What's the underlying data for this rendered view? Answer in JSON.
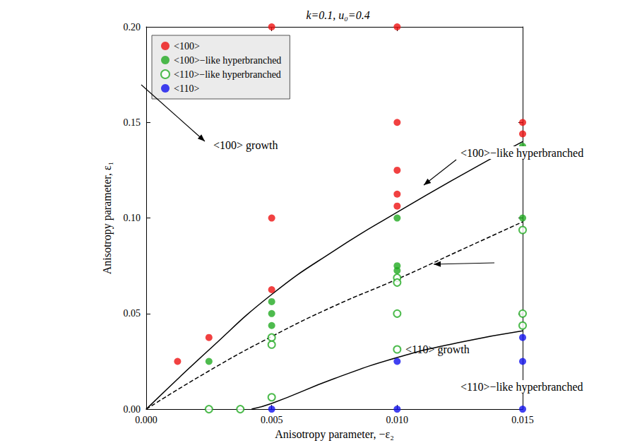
{
  "chart_data": {
    "type": "scatter",
    "title": "k=0.1, u₀=0.4",
    "x_label": "Anisotropy parameter, −ε₂",
    "y_label": "Anisotropy parameter, ε₁",
    "xlim": [
      0,
      0.015
    ],
    "xticks": [
      {
        "value": 0,
        "label": "0.000"
      },
      {
        "value": 0.005,
        "label": "0.005"
      },
      {
        "value": 0.01,
        "label": "0.010"
      },
      {
        "value": 0.015,
        "label": "0.015"
      }
    ],
    "ylim": [
      0,
      0.2
    ],
    "yticks": [
      {
        "value": 0,
        "label": "0.00"
      },
      0.05,
      {
        "value": 0.1,
        "label": "0.10"
      },
      0.15,
      {
        "value": 0.2,
        "label": "0.20"
      }
    ],
    "grid": false,
    "legend": "top-left",
    "series": [
      {
        "name": "<100>",
        "type": "scatter",
        "marker": "circle",
        "color": "#ee1111",
        "values": [
          [
            0.00125,
            0.025
          ],
          [
            0.0025,
            0.0375
          ],
          [
            0.005,
            0.0625
          ],
          [
            0.005,
            0.1
          ],
          [
            0.005,
            0.2
          ],
          [
            0.01,
            0.2
          ],
          [
            0.01,
            0.15
          ],
          [
            0.01,
            0.125
          ],
          [
            0.01,
            0.1125
          ],
          [
            0.01,
            0.10625
          ],
          [
            0.015,
            0.15
          ],
          [
            0.015,
            0.144
          ]
        ]
      },
      {
        "name": "<100>−like hyperbranched",
        "type": "scatter",
        "marker": "circle",
        "color": "#22aa22",
        "values": [
          [
            0.0025,
            0.025
          ],
          [
            0.005,
            0.05625
          ],
          [
            0.005,
            0.05
          ],
          [
            0.005,
            0.04375
          ],
          [
            0.01,
            0.1
          ],
          [
            0.01,
            0.075
          ],
          [
            0.01,
            0.0725
          ],
          [
            0.015,
            0.1375
          ],
          [
            0.015,
            0.1
          ]
        ]
      },
      {
        "name": "<110>−like hyperbranched",
        "type": "scatter",
        "marker": "open_circle",
        "color": "#22aa22",
        "values": [
          [
            0.0025,
            0
          ],
          [
            0.00375,
            0
          ],
          [
            0.005,
            0.0375
          ],
          [
            0.005,
            0.03375
          ],
          [
            0.005,
            0.00625
          ],
          [
            0.01,
            0.06875
          ],
          [
            0.01,
            0.06625
          ],
          [
            0.01,
            0.05
          ],
          [
            0.01,
            0.03125
          ],
          [
            0.015,
            0.09375
          ],
          [
            0.015,
            0.05
          ],
          [
            0.015,
            0.04375
          ]
        ]
      },
      {
        "name": "<110>",
        "type": "scatter",
        "marker": "circle",
        "color": "#1111ee",
        "values": [
          [
            0.005,
            0
          ],
          [
            0.01,
            0.025
          ],
          [
            0.01,
            0
          ],
          [
            0.015,
            0.0375
          ],
          [
            0.015,
            0.025
          ],
          [
            0.015,
            0
          ]
        ]
      },
      {
        "type": "line",
        "line_style": "solid",
        "color": "#000000",
        "values": [
          [
            0,
            0
          ],
          [
            0.0025,
            0.031
          ],
          [
            0.005,
            0.06
          ],
          [
            0.0075,
            0.083
          ],
          [
            0.01,
            0.103
          ],
          [
            0.0125,
            0.122
          ],
          [
            0.015,
            0.14
          ]
        ]
      },
      {
        "type": "line",
        "line_style": "dashed",
        "color": "#000000",
        "values": [
          [
            0,
            0
          ],
          [
            0.0025,
            0.02
          ],
          [
            0.005,
            0.038
          ],
          [
            0.0075,
            0.054
          ],
          [
            0.01,
            0.068
          ],
          [
            0.0125,
            0.083
          ],
          [
            0.015,
            0.098
          ]
        ]
      },
      {
        "type": "line",
        "line_style": "solid",
        "color": "#000000",
        "values": [
          [
            0.0042,
            0
          ],
          [
            0.005,
            0.003
          ],
          [
            0.0075,
            0.016
          ],
          [
            0.01,
            0.027
          ],
          [
            0.0125,
            0.035
          ],
          [
            0.015,
            0.041
          ]
        ]
      }
    ],
    "annotations": [
      "<100> growth",
      "<100>−like hyperbranched",
      "<110>−like hyperbranched",
      "<110> growth"
    ]
  }
}
